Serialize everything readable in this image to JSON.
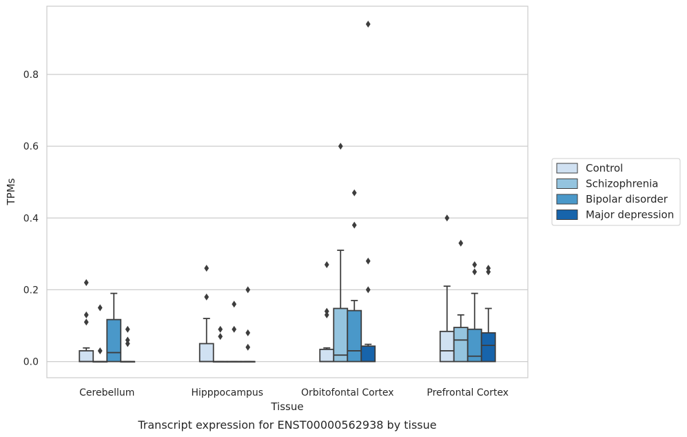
{
  "chart_data": {
    "type": "box",
    "xlabel": "Tissue",
    "ylabel": "TPMs",
    "caption": "Transcript expression for ENST00000562938 by tissue",
    "ylim": [
      -0.045,
      0.99
    ],
    "yticks": [
      "0.0",
      "0.2",
      "0.4",
      "0.6",
      "0.8"
    ],
    "grid": "horizontal",
    "legend_position": "right",
    "categories": [
      "Cerebellum",
      "Hipppocampus",
      "Orbitofontal Cortex",
      "Prefrontal Cortex"
    ],
    "series": [
      {
        "name": "Control",
        "color": "#d0e1f2",
        "boxes": [
          {
            "whisker_low": 0,
            "q1": 0,
            "median": 0,
            "q3": 0.03,
            "whisker_high": 0.038,
            "outliers": [
              0.11,
              0.13,
              0.22
            ]
          },
          {
            "whisker_low": 0,
            "q1": 0,
            "median": 0,
            "q3": 0.05,
            "whisker_high": 0.12,
            "outliers": [
              0.18,
              0.26
            ]
          },
          {
            "whisker_low": 0,
            "q1": 0,
            "median": 0,
            "q3": 0.034,
            "whisker_high": 0.038,
            "outliers": [
              0.13,
              0.14,
              0.27
            ]
          },
          {
            "whisker_low": 0,
            "q1": 0,
            "median": 0.03,
            "q3": 0.084,
            "whisker_high": 0.21,
            "outliers": [
              0.4
            ]
          }
        ]
      },
      {
        "name": "Schizophrenia",
        "color": "#94c4df",
        "boxes": [
          {
            "whisker_low": 0,
            "q1": 0,
            "median": 0,
            "q3": 0,
            "whisker_high": 0,
            "outliers": [
              0.03,
              0.15
            ]
          },
          {
            "whisker_low": 0,
            "q1": 0,
            "median": 0,
            "q3": 0,
            "whisker_high": 0,
            "outliers": [
              0.07,
              0.09
            ]
          },
          {
            "whisker_low": 0,
            "q1": 0,
            "median": 0.018,
            "q3": 0.148,
            "whisker_high": 0.31,
            "outliers": [
              0.6
            ]
          },
          {
            "whisker_low": 0,
            "q1": 0,
            "median": 0.06,
            "q3": 0.095,
            "whisker_high": 0.13,
            "outliers": [
              0.33
            ]
          }
        ]
      },
      {
        "name": "Bipolar disorder",
        "color": "#4a98c9",
        "boxes": [
          {
            "whisker_low": 0,
            "q1": 0,
            "median": 0.025,
            "q3": 0.117,
            "whisker_high": 0.19,
            "outliers": []
          },
          {
            "whisker_low": 0,
            "q1": 0,
            "median": 0,
            "q3": 0,
            "whisker_high": 0,
            "outliers": [
              0.09,
              0.16
            ]
          },
          {
            "whisker_low": 0,
            "q1": 0,
            "median": 0.03,
            "q3": 0.142,
            "whisker_high": 0.17,
            "outliers": [
              0.38,
              0.47
            ]
          },
          {
            "whisker_low": 0,
            "q1": 0,
            "median": 0.015,
            "q3": 0.09,
            "whisker_high": 0.19,
            "outliers": [
              0.25,
              0.27
            ]
          }
        ]
      },
      {
        "name": "Major depression",
        "color": "#1764ab",
        "boxes": [
          {
            "whisker_low": 0,
            "q1": 0,
            "median": 0,
            "q3": 0,
            "whisker_high": 0,
            "outliers": [
              0.05,
              0.06,
              0.09
            ]
          },
          {
            "whisker_low": 0,
            "q1": 0,
            "median": 0,
            "q3": 0,
            "whisker_high": 0,
            "outliers": [
              0.04,
              0.08,
              0.2
            ]
          },
          {
            "whisker_low": 0,
            "q1": 0,
            "median": 0,
            "q3": 0.043,
            "whisker_high": 0.048,
            "outliers": [
              0.2,
              0.28,
              0.94
            ]
          },
          {
            "whisker_low": 0,
            "q1": 0,
            "median": 0.045,
            "q3": 0.08,
            "whisker_high": 0.148,
            "outliers": [
              0.25,
              0.26
            ]
          }
        ]
      }
    ]
  }
}
